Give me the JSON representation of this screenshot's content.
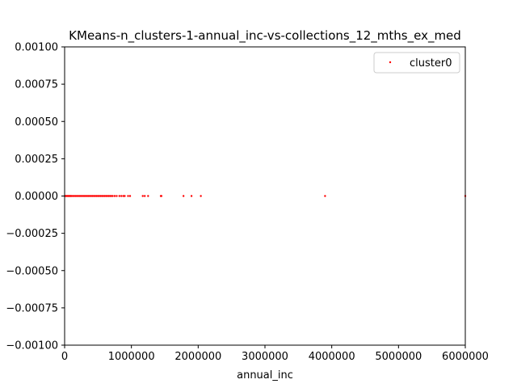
{
  "chart_data": {
    "type": "scatter",
    "title": "KMeans-n_clusters-1-annual_inc-vs-collections_12_mths_ex_med",
    "xlabel": "annual_inc",
    "ylabel": "",
    "xlim": [
      0,
      6000000
    ],
    "ylim": [
      -0.001,
      0.001
    ],
    "xticks": [
      0,
      1000000,
      2000000,
      3000000,
      4000000,
      5000000,
      6000000
    ],
    "xtick_labels": [
      "0",
      "1000000",
      "2000000",
      "3000000",
      "4000000",
      "5000000",
      "6000000"
    ],
    "yticks": [
      0.001,
      0.00075,
      0.0005,
      0.00025,
      0,
      -0.00025,
      -0.0005,
      -0.00075,
      -0.001
    ],
    "ytick_labels": [
      "0.00100",
      "0.00075",
      "0.00050",
      "0.00025",
      "0.00000",
      "−0.00025",
      "−0.00050",
      "−0.00075",
      "−0.00100"
    ],
    "grid": false,
    "legend": {
      "placement": "top-right",
      "entries": [
        "cluster0"
      ]
    },
    "series": [
      {
        "name": "cluster0",
        "color": "#ff0000",
        "marker": "dot",
        "x": [
          4000,
          10000,
          20000,
          30000,
          40000,
          50000,
          60000,
          70000,
          80000,
          90000,
          100000,
          120000,
          140000,
          160000,
          180000,
          200000,
          220000,
          240000,
          260000,
          280000,
          300000,
          320000,
          340000,
          360000,
          380000,
          400000,
          420000,
          440000,
          460000,
          480000,
          500000,
          520000,
          540000,
          560000,
          580000,
          600000,
          620000,
          640000,
          660000,
          680000,
          700000,
          720000,
          750000,
          780000,
          820000,
          850000,
          880000,
          900000,
          950000,
          980000,
          1170000,
          1200000,
          1250000,
          1440000,
          1450000,
          1780000,
          1900000,
          2040000,
          3900000,
          6000000
        ],
        "y": [
          0,
          0,
          0,
          0,
          0,
          0,
          0,
          0,
          0,
          0,
          0,
          0,
          0,
          0,
          0,
          0,
          0,
          0,
          0,
          0,
          0,
          0,
          0,
          0,
          0,
          0,
          0,
          0,
          0,
          0,
          0,
          0,
          0,
          0,
          0,
          0,
          0,
          0,
          0,
          0,
          0,
          0,
          0,
          0,
          0,
          0,
          0,
          0,
          0,
          0,
          0,
          0,
          0,
          0,
          0,
          0,
          0,
          0,
          0,
          0
        ]
      }
    ]
  }
}
